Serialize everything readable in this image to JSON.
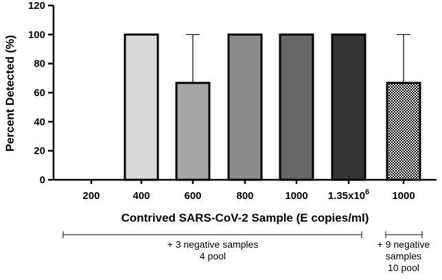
{
  "chart_data": {
    "type": "bar",
    "ylabel": "Percent  Detected  (%)",
    "xlabel": "Contrived SARS-CoV-2 Sample (E copies/ml)",
    "ylim": [
      0,
      120
    ],
    "yticks": [
      0,
      20,
      40,
      60,
      80,
      100,
      120
    ],
    "grid": false,
    "legend": "none",
    "categories": [
      "200",
      "400",
      "600",
      "800",
      "1000",
      "1.35x10^6",
      "1000"
    ],
    "category_labels": [
      {
        "base": "200"
      },
      {
        "base": "400"
      },
      {
        "base": "600"
      },
      {
        "base": "800"
      },
      {
        "base": "1000"
      },
      {
        "base": "1.35x10",
        "sup": "6"
      },
      {
        "base": "1000"
      }
    ],
    "values": [
      0,
      100,
      66.7,
      100,
      100,
      100,
      66.7
    ],
    "error_upper": [
      null,
      null,
      100,
      null,
      null,
      null,
      100
    ],
    "bar_fills": [
      "#ffffff",
      "#d9d9d9",
      "#a6a6a6",
      "#8c8c8c",
      "#666666",
      "#333333",
      "checker"
    ],
    "groups": [
      {
        "lines": [
          "+ 3 negative samples",
          "4 pool"
        ],
        "from_category": 0,
        "to_category": 5
      },
      {
        "lines": [
          "+ 9 negative",
          "samples",
          "10 pool"
        ],
        "from_category": 6,
        "to_category": 6
      }
    ]
  }
}
